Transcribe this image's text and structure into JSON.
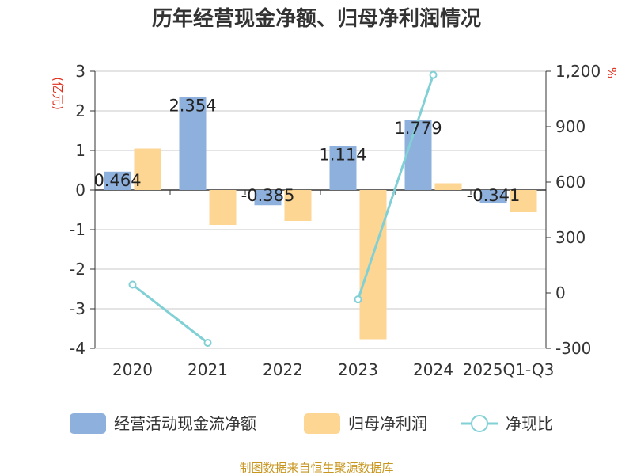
{
  "chart_data": {
    "type": "bar",
    "title": "历年经营现金净额、归母净利润情况",
    "ylabel": "(亿元)",
    "y2label": "%",
    "categories": [
      "2020",
      "2021",
      "2022",
      "2023",
      "2024",
      "2025Q1-Q3"
    ],
    "ylim": [
      -4,
      3
    ],
    "yticks": [
      "3",
      "2",
      "1",
      "0",
      "-1",
      "-2",
      "-3",
      "-4"
    ],
    "y2lim": [
      -300,
      1200
    ],
    "y2ticks": [
      "1,200",
      "900",
      "600",
      "300",
      "0",
      "-300"
    ],
    "series": [
      {
        "name": "经营活动现金流净额",
        "kind": "bar",
        "color": "#8eb0dc",
        "values": [
          0.464,
          2.354,
          -0.385,
          1.114,
          1.779,
          -0.341
        ],
        "labels": [
          "0.464",
          "2.354",
          "-0.385",
          "1.114",
          "1.779",
          "-0.341"
        ]
      },
      {
        "name": "归母净利润",
        "kind": "bar",
        "color": "#fdd694",
        "values": [
          1.05,
          -0.88,
          -0.78,
          -3.77,
          0.17,
          -0.56
        ]
      },
      {
        "name": "净现比",
        "kind": "line",
        "axis": "right",
        "color": "#80d0d6",
        "values": [
          45,
          -270,
          null,
          -35,
          1180,
          null
        ]
      }
    ],
    "legend_position": "bottom",
    "grid": true
  },
  "source": "制图数据来自恒生聚源数据库"
}
